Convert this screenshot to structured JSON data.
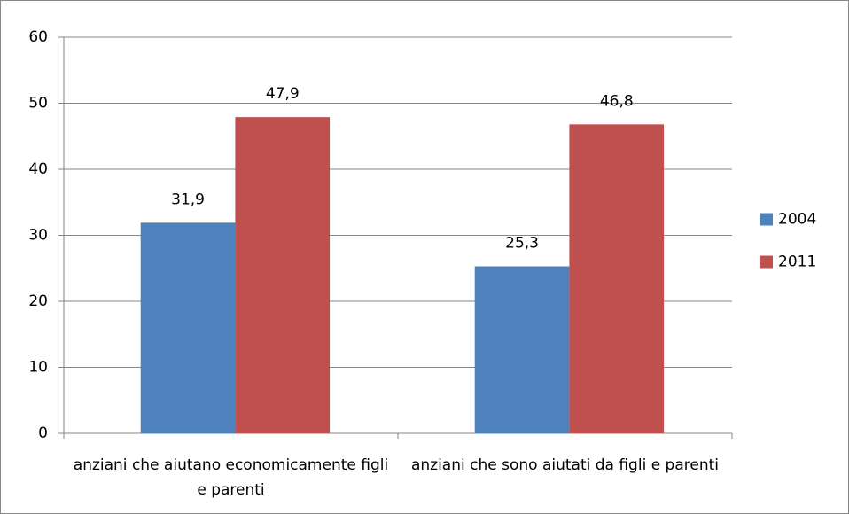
{
  "chart_data": {
    "type": "bar",
    "categories": [
      "anziani che aiutano economicamente figli e parenti",
      "anziani che sono aiutati da figli e parenti"
    ],
    "series": [
      {
        "name": "2004",
        "color": "#4f81bd",
        "values": [
          31.9,
          25.3
        ],
        "value_labels": [
          "31,9",
          "25,3"
        ]
      },
      {
        "name": "2011",
        "color": "#c0504d",
        "values": [
          47.9,
          46.8
        ],
        "value_labels": [
          "47,9",
          "46,8"
        ]
      }
    ],
    "ylim": [
      0,
      60
    ],
    "yticks": [
      0,
      10,
      20,
      30,
      40,
      50,
      60
    ],
    "grid": true,
    "legend": "right"
  }
}
